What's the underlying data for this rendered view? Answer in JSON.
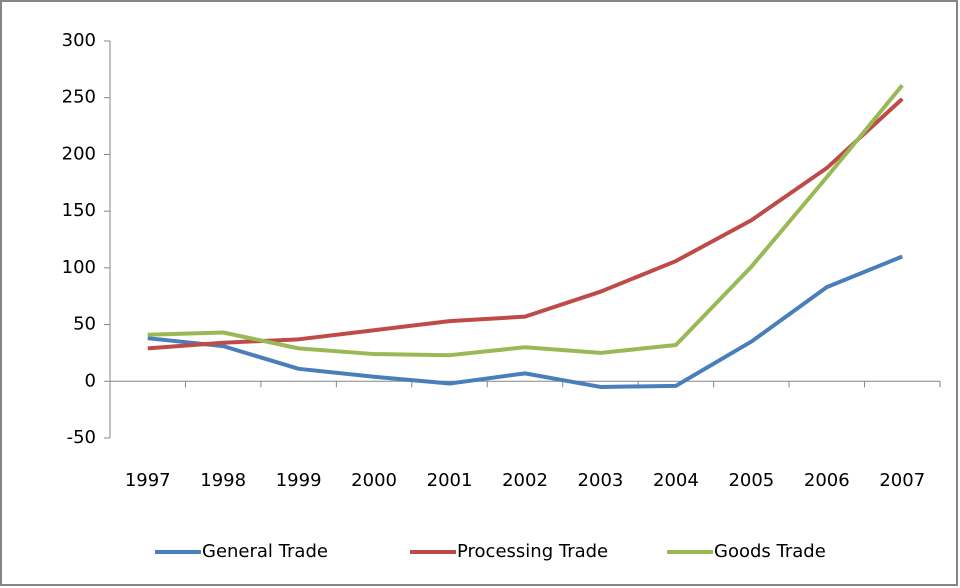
{
  "chart_data": {
    "type": "line",
    "categories": [
      "1997",
      "1998",
      "1999",
      "2000",
      "2001",
      "2002",
      "2003",
      "2004",
      "2005",
      "2006",
      "2007"
    ],
    "series": [
      {
        "name": "General Trade",
        "color": "#4a7ebb",
        "values": [
          38,
          31,
          11,
          4,
          -2,
          7,
          -5,
          -4,
          35,
          83,
          110
        ]
      },
      {
        "name": "Processing Trade",
        "color": "#be4b48",
        "values": [
          29,
          34,
          37,
          45,
          53,
          57,
          79,
          106,
          142,
          188,
          249
        ]
      },
      {
        "name": "Goods Trade",
        "color": "#98b954",
        "values": [
          41,
          43,
          29,
          24,
          23,
          30,
          25,
          32,
          101,
          180,
          261
        ]
      }
    ],
    "ylim": [
      -50,
      300
    ],
    "yticks": [
      -50,
      0,
      50,
      100,
      150,
      200,
      250,
      300
    ],
    "grid": false,
    "legend": "bottom"
  }
}
